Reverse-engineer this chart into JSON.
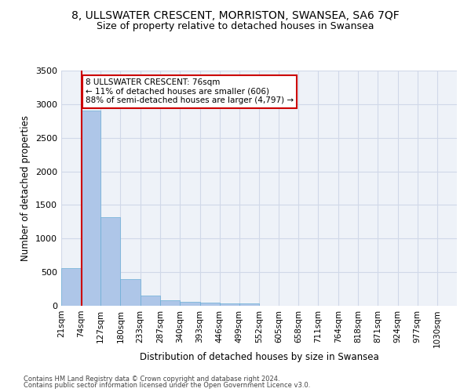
{
  "title": "8, ULLSWATER CRESCENT, MORRISTON, SWANSEA, SA6 7QF",
  "subtitle": "Size of property relative to detached houses in Swansea",
  "xlabel": "Distribution of detached houses by size in Swansea",
  "ylabel": "Number of detached properties",
  "footer_line1": "Contains HM Land Registry data © Crown copyright and database right 2024.",
  "footer_line2": "Contains public sector information licensed under the Open Government Licence v3.0.",
  "bar_edges": [
    21,
    74,
    127,
    180,
    233,
    287,
    340,
    393,
    446,
    499,
    552,
    605,
    658,
    711,
    764,
    818,
    871,
    924,
    977,
    1030,
    1083
  ],
  "bar_heights": [
    560,
    2910,
    1320,
    400,
    155,
    85,
    60,
    50,
    40,
    35,
    0,
    0,
    0,
    0,
    0,
    0,
    0,
    0,
    0,
    0
  ],
  "bar_color": "#aec6e8",
  "bar_edge_color": "#6aaed6",
  "grid_color": "#d0d8e8",
  "property_size": 76,
  "property_line_color": "#cc0000",
  "annotation_text": "8 ULLSWATER CRESCENT: 76sqm\n← 11% of detached houses are smaller (606)\n88% of semi-detached houses are larger (4,797) →",
  "annotation_box_color": "#cc0000",
  "ylim": [
    0,
    3500
  ],
  "bg_color": "#eef2f8",
  "title_fontsize": 10,
  "subtitle_fontsize": 9,
  "tick_label_fontsize": 7.5
}
